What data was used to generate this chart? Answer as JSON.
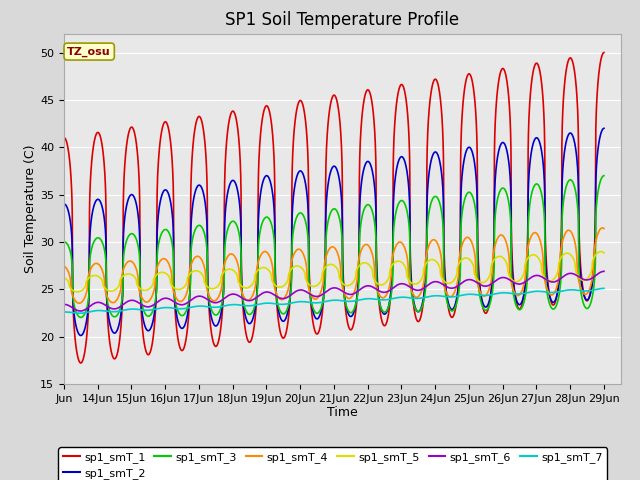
{
  "title": "SP1 Soil Temperature Profile",
  "xlabel": "Time",
  "ylabel": "Soil Temperature (C)",
  "ylim": [
    15,
    52
  ],
  "annotation": "TZ_osu",
  "annotation_color": "#8b0000",
  "annotation_bg": "#ffffcc",
  "annotation_border": "#999900",
  "series_names": [
    "sp1_smT_1",
    "sp1_smT_2",
    "sp1_smT_3",
    "sp1_smT_4",
    "sp1_smT_5",
    "sp1_smT_6",
    "sp1_smT_7"
  ],
  "series_colors": [
    "#dd0000",
    "#0000cc",
    "#00cc00",
    "#ff8800",
    "#dddd00",
    "#9900cc",
    "#00cccc"
  ],
  "background_color": "#d9d9d9",
  "plot_bg": "#e8e8e8",
  "grid_color": "#ffffff",
  "legend_fontsize": 8,
  "title_fontsize": 12,
  "tick_fontsize": 8
}
